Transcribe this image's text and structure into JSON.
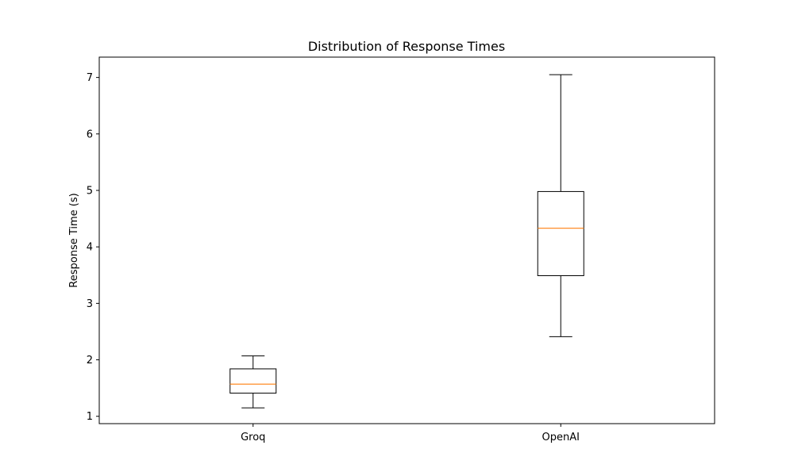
{
  "chart_data": {
    "type": "boxplot",
    "title": "Distribution of Response Times",
    "xlabel": "",
    "ylabel": "Response Time (s)",
    "categories": [
      "Groq",
      "OpenAI"
    ],
    "boxes": [
      {
        "label": "Groq",
        "whisker_low": 1.15,
        "q1": 1.41,
        "median": 1.57,
        "q3": 1.84,
        "whisker_high": 2.07
      },
      {
        "label": "OpenAI",
        "whisker_low": 2.41,
        "q1": 3.49,
        "median": 4.33,
        "q3": 4.98,
        "whisker_high": 7.05
      }
    ],
    "ylim": [
      0.87,
      7.36
    ],
    "yticks": [
      1,
      2,
      3,
      4,
      5,
      6,
      7
    ],
    "grid": false,
    "colors": {
      "box": "#000000",
      "median": "#ff7f0e"
    }
  }
}
